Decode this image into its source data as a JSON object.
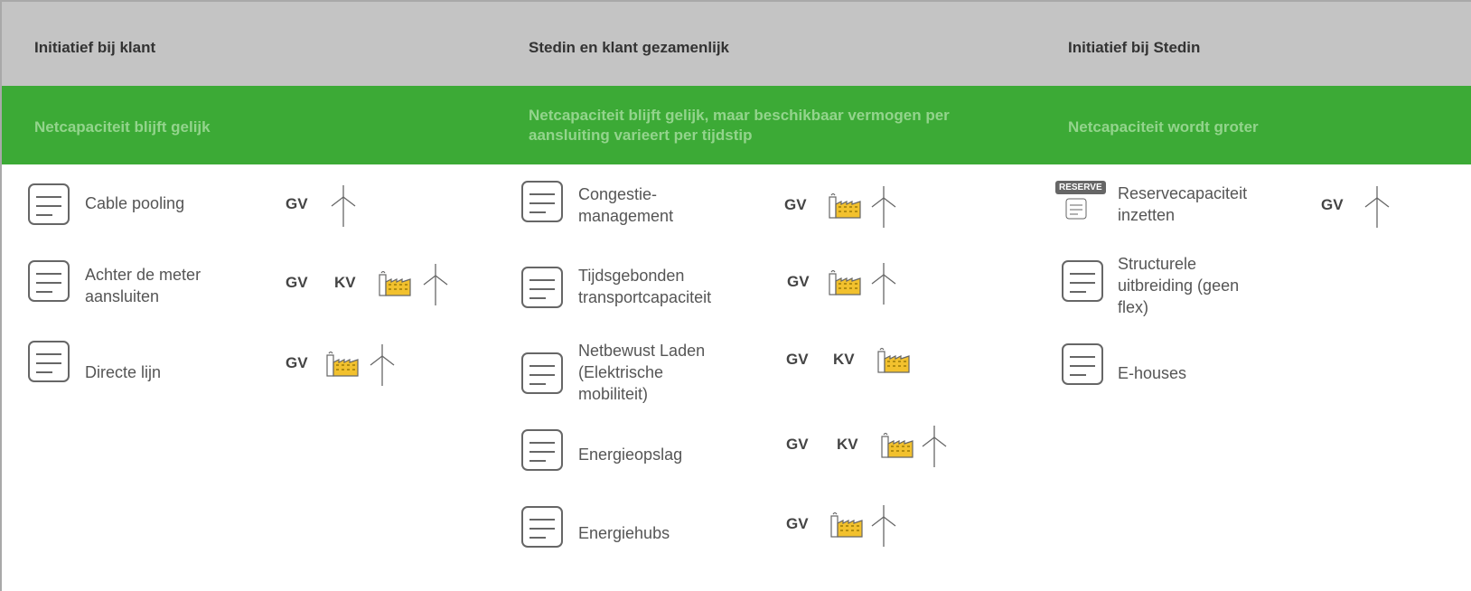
{
  "columns": [
    {
      "header": "Initiatief bij klant",
      "subheader": "Netcapaciteit blijft gelijk",
      "items": [
        {
          "label": "Cable pooling",
          "tags": [
            "GV"
          ]
        },
        {
          "label": "Achter de meter aansluiten",
          "tags": [
            "GV",
            "KV"
          ]
        },
        {
          "label": "Directe lijn",
          "tags": [
            "GV"
          ]
        }
      ]
    },
    {
      "header": "Stedin en klant gezamenlijk",
      "subheader": "Netcapaciteit blijft gelijk, maar beschikbaar vermogen per aansluiting varieert per tijdstip",
      "items": [
        {
          "label": "Congestie-management",
          "tags": [
            "GV"
          ]
        },
        {
          "label": "Tijdsgebonden transportcapaciteit",
          "tags": [
            "GV"
          ]
        },
        {
          "label": "Netbewust Laden (Elektrische mobiliteit)",
          "tags": [
            "GV",
            "KV"
          ]
        },
        {
          "label": "Energieopslag",
          "tags": [
            "GV",
            "KV"
          ]
        },
        {
          "label": "Energiehubs",
          "tags": [
            "GV"
          ]
        }
      ]
    },
    {
      "header": "Initiatief bij Stedin",
      "subheader": "Netcapaciteit wordt groter",
      "items": [
        {
          "label": "Reservecapaciteit inzetten",
          "tags": [
            "GV"
          ],
          "icon_text": "RESERVE"
        },
        {
          "label": "Structurele uitbreiding (geen flex)",
          "tags": []
        },
        {
          "label": "E-houses",
          "tags": []
        }
      ]
    }
  ]
}
